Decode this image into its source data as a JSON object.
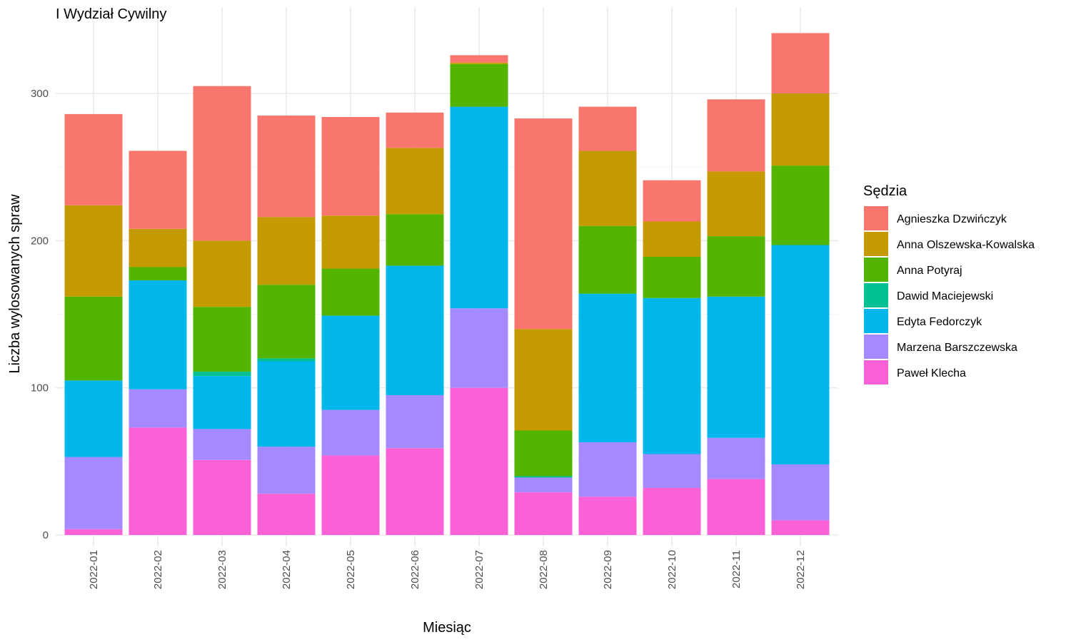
{
  "chart_data": {
    "type": "bar",
    "stacked": true,
    "title": "I Wydział Cywilny",
    "xlabel": "Miesiąc",
    "ylabel": "Liczba wylosowanych spraw",
    "ylim": [
      0,
      345
    ],
    "yticks": [
      0,
      100,
      200,
      300
    ],
    "grid": true,
    "legend_title": "Sędzia",
    "legend_position": "right",
    "categories": [
      "2022-01",
      "2022-02",
      "2022-03",
      "2022-04",
      "2022-05",
      "2022-06",
      "2022-07",
      "2022-08",
      "2022-09",
      "2022-10",
      "2022-11",
      "2022-12"
    ],
    "series": [
      {
        "name": "Agnieszka Dzwińczyk",
        "color": "#F8766D",
        "values": [
          62,
          53,
          105,
          69,
          67,
          24,
          5,
          143,
          30,
          28,
          49,
          41
        ]
      },
      {
        "name": "Anna Olszewska-Kowalska",
        "color": "#C49A00",
        "values": [
          62,
          26,
          45,
          46,
          36,
          45,
          1,
          69,
          51,
          24,
          44,
          49
        ]
      },
      {
        "name": "Anna Potyraj",
        "color": "#53B400",
        "values": [
          57,
          9,
          44,
          50,
          32,
          35,
          29,
          31,
          46,
          28,
          41,
          54
        ]
      },
      {
        "name": "Dawid Maciejewski",
        "color": "#00C094",
        "values": [
          0,
          0,
          3,
          2,
          0,
          0,
          0,
          1,
          0,
          0,
          0,
          0
        ]
      },
      {
        "name": "Edyta Fedorczyk",
        "color": "#00B6EB",
        "values": [
          52,
          74,
          36,
          58,
          64,
          88,
          137,
          0,
          101,
          106,
          96,
          149
        ]
      },
      {
        "name": "Marzena Barszczewska",
        "color": "#A58AFF",
        "values": [
          49,
          26,
          21,
          32,
          31,
          36,
          54,
          10,
          37,
          23,
          28,
          38
        ]
      },
      {
        "name": "Paweł Klecha",
        "color": "#FB61D7",
        "values": [
          4,
          73,
          51,
          28,
          54,
          59,
          100,
          29,
          26,
          32,
          38,
          10
        ]
      }
    ]
  }
}
